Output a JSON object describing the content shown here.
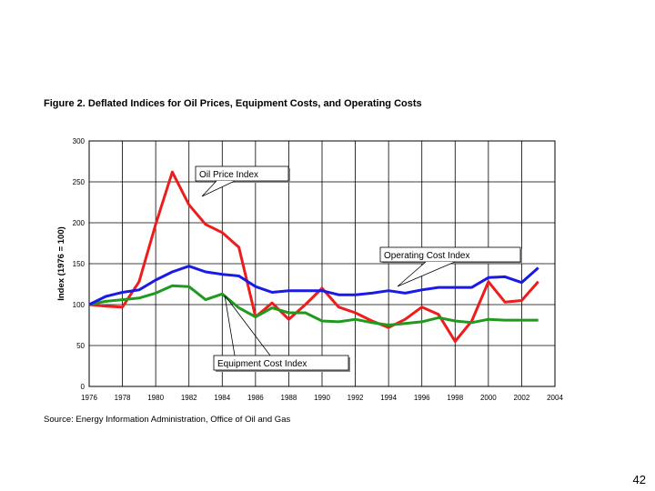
{
  "chart_data": {
    "type": "line",
    "title": "Figure 2. Deflated Indices for Oil Prices, Equipment Costs, and Operating Costs",
    "xlabel": "",
    "ylabel": "Index (1976 = 100)",
    "xlim": [
      1976,
      2004
    ],
    "ylim": [
      0,
      300
    ],
    "x_ticks": [
      1976,
      1978,
      1980,
      1982,
      1984,
      1986,
      1988,
      1990,
      1992,
      1994,
      1996,
      1998,
      2000,
      2002,
      2004
    ],
    "y_ticks": [
      0,
      50,
      100,
      150,
      200,
      250,
      300
    ],
    "grid": true,
    "x": [
      1976,
      1977,
      1978,
      1979,
      1980,
      1981,
      1982,
      1983,
      1984,
      1985,
      1986,
      1987,
      1988,
      1989,
      1990,
      1991,
      1992,
      1993,
      1994,
      1995,
      1996,
      1997,
      1998,
      1999,
      2000,
      2001,
      2002,
      2003
    ],
    "series": [
      {
        "name": "Oil Price Index",
        "color": "#ee1c1c",
        "values": [
          100,
          98,
          97,
          128,
          198,
          262,
          222,
          198,
          188,
          170,
          85,
          102,
          82,
          100,
          120,
          97,
          90,
          80,
          72,
          82,
          97,
          88,
          55,
          80,
          128,
          103,
          105,
          128
        ]
      },
      {
        "name": "Operating Cost Index",
        "color": "#1a1ae6",
        "values": [
          100,
          110,
          115,
          118,
          130,
          140,
          147,
          140,
          137,
          135,
          122,
          115,
          117,
          117,
          117,
          112,
          112,
          114,
          117,
          114,
          118,
          121,
          121,
          121,
          133,
          134,
          127,
          145
        ]
      },
      {
        "name": "Equipment Cost Index",
        "color": "#1f9a1f",
        "values": [
          100,
          104,
          106,
          108,
          114,
          123,
          122,
          106,
          113,
          96,
          85,
          96,
          90,
          90,
          80,
          79,
          82,
          78,
          75,
          77,
          79,
          84,
          80,
          78,
          82,
          81,
          81,
          81
        ]
      }
    ],
    "annotations": [
      "Oil Price Index",
      "Operating Cost Index",
      "Equipment Cost Index"
    ]
  },
  "source": "Source: Energy Information Administration, Office of Oil and Gas",
  "page_number": "42"
}
